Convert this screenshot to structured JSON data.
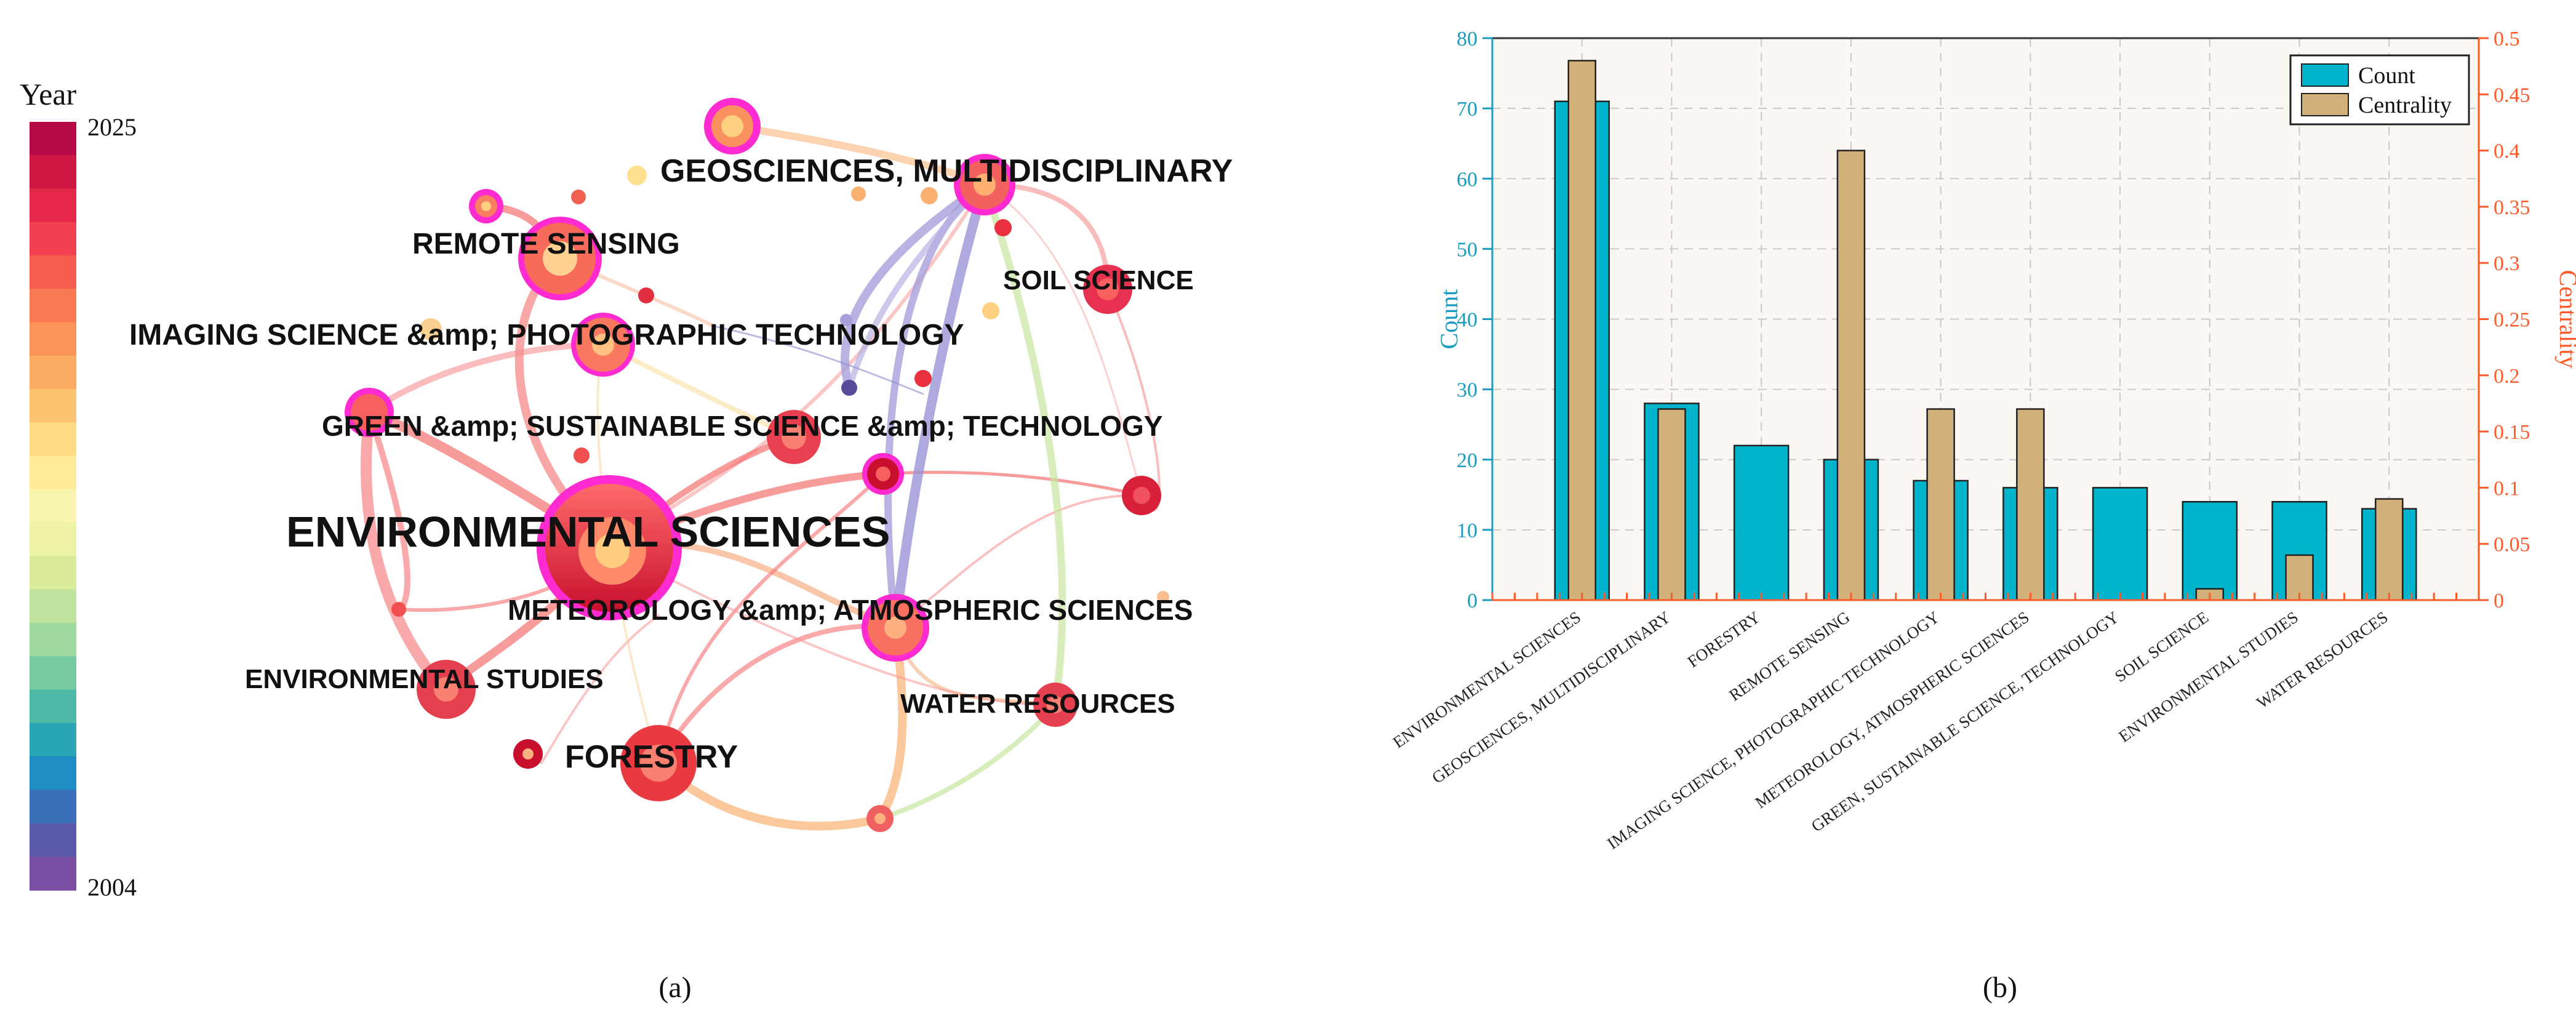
{
  "panel_a": {
    "caption": "(a)",
    "legend": {
      "title": "Year",
      "max_label": "2025",
      "min_label": "2004"
    },
    "nodes": [
      {
        "label": "ENVIRONMENTAL SCIENCES"
      },
      {
        "label": "GEOSCIENCES, MULTIDISCIPLINARY"
      },
      {
        "label": "REMOTE SENSING"
      },
      {
        "label": "SOIL SCIENCE"
      },
      {
        "label": "IMAGING SCIENCE &amp; PHOTOGRAPHIC TECHNOLOGY"
      },
      {
        "label": "GREEN &amp; SUSTAINABLE SCIENCE &amp; TECHNOLOGY"
      },
      {
        "label": "METEOROLOGY &amp; ATMOSPHERIC SCIENCES"
      },
      {
        "label": "ENVIRONMENTAL STUDIES"
      },
      {
        "label": "WATER RESOURCES"
      },
      {
        "label": "FORESTRY"
      }
    ]
  },
  "panel_b": {
    "caption": "(b)"
  },
  "colors": {
    "count_bar": "#00B4CC",
    "centrality_bar": "#D2B07A",
    "count_axis": "#1A9CC0",
    "centrality_axis": "#FF5A2A",
    "plot_bg": "#FBF8F4"
  },
  "chart_data": {
    "type": "bar",
    "categories": [
      "ENVIRONMENTAL SCIENCES",
      "GEOSCIENCES, MULTIDISCIPLINARY",
      "FORESTRY",
      "REMOTE SENSING",
      "IMAGING SCIENCE, PHOTOGRAPHIC TECHNOLOGY",
      "METEOROLOGY, ATMOSPHERIC SCIENCES",
      "GREEN, SUSTAINABLE SCIENCE, TECHNOLOGY",
      "SOIL SCIENCE",
      "ENVIRONMENTAL STUDIES",
      "WATER RESOURCES"
    ],
    "series": [
      {
        "name": "Count",
        "axis": "left",
        "values": [
          71,
          28,
          22,
          20,
          17,
          16,
          16,
          14,
          14,
          13
        ]
      },
      {
        "name": "Centrality",
        "axis": "right",
        "values": [
          0.48,
          0.17,
          0,
          0.4,
          0.17,
          0.17,
          0,
          0.01,
          0.04,
          0.09
        ]
      }
    ],
    "ylabel": "Count",
    "y2label": "Centrality",
    "ylim": [
      0,
      80
    ],
    "y2lim": [
      0,
      0.5
    ],
    "yticks": [
      0,
      10,
      20,
      30,
      40,
      50,
      60,
      70,
      80
    ],
    "y2ticks": [
      "0",
      "0.05",
      "0.1",
      "0.15",
      "0.2",
      "0.25",
      "0.3",
      "0.35",
      "0.4",
      "0.45",
      "0.5"
    ],
    "grid": true,
    "legend_position": "top-right"
  }
}
